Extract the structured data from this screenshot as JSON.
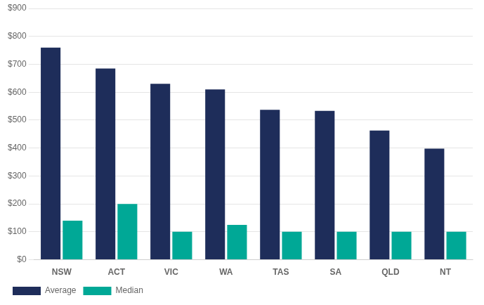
{
  "chart_data": {
    "type": "bar",
    "categories": [
      "NSW",
      "ACT",
      "VIC",
      "WA",
      "TAS",
      "SA",
      "QLD",
      "NT"
    ],
    "series": [
      {
        "name": "Average",
        "color": "#1e2d5a",
        "values": [
          760,
          685,
          630,
          610,
          537,
          533,
          463,
          398
        ]
      },
      {
        "name": "Median",
        "color": "#00a896",
        "values": [
          140,
          200,
          100,
          125,
          100,
          100,
          100,
          100
        ]
      }
    ],
    "ylim": [
      0,
      900
    ],
    "yticks": [
      {
        "value": 0,
        "label": "$0"
      },
      {
        "value": 100,
        "label": "$100"
      },
      {
        "value": 200,
        "label": "$200"
      },
      {
        "value": 300,
        "label": "$300"
      },
      {
        "value": 400,
        "label": "$400"
      },
      {
        "value": 500,
        "label": "$500"
      },
      {
        "value": 600,
        "label": "$600"
      },
      {
        "value": 700,
        "label": "$700"
      },
      {
        "value": 800,
        "label": "$800"
      },
      {
        "value": 900,
        "label": "$900"
      }
    ],
    "grid": true,
    "legend": "bottom"
  }
}
